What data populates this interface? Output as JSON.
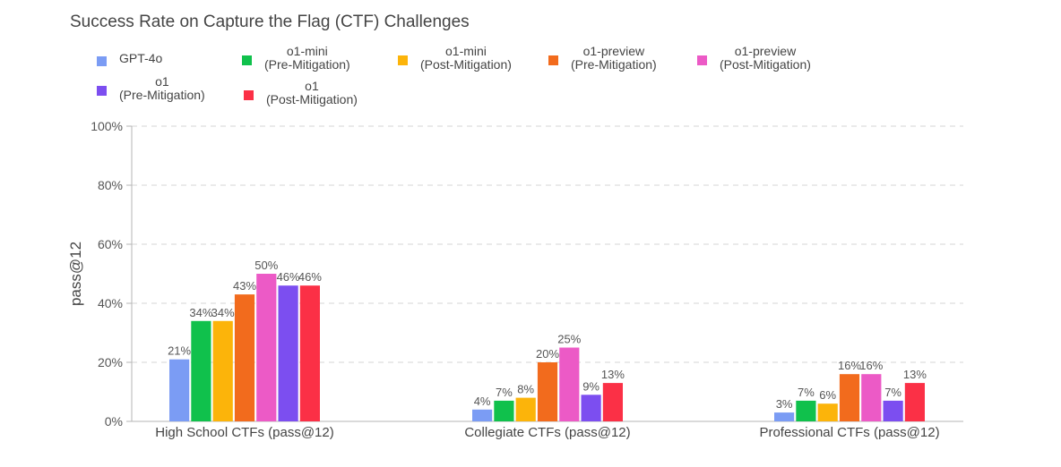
{
  "chart_data": {
    "type": "bar",
    "title": "Success Rate on Capture the Flag (CTF) Challenges",
    "xlabel": "",
    "ylabel": "pass@12",
    "ylim": [
      0,
      100
    ],
    "y_ticks": [
      "0%",
      "20%",
      "40%",
      "60%",
      "80%",
      "100%"
    ],
    "grid": true,
    "legend_position": "top",
    "categories": [
      "High School CTFs (pass@12)",
      "Collegiate CTFs (pass@12)",
      "Professional CTFs (pass@12)"
    ],
    "series": [
      {
        "name": "GPT-4o",
        "name_lines": [
          "GPT-4o"
        ],
        "color": "#7b9cf4",
        "values": [
          21,
          4,
          3
        ],
        "labels": [
          "21%",
          "4%",
          "3%"
        ]
      },
      {
        "name": "o1-mini (Pre-Mitigation)",
        "name_lines": [
          "o1-mini",
          "(Pre-Mitigation)"
        ],
        "color": "#10c14c",
        "values": [
          34,
          7,
          7
        ],
        "labels": [
          "34%",
          "7%",
          "7%"
        ]
      },
      {
        "name": "o1-mini (Post-Mitigation)",
        "name_lines": [
          "o1-mini",
          "(Post-Mitigation)"
        ],
        "color": "#fcb40a",
        "values": [
          34,
          8,
          6
        ],
        "labels": [
          "34%",
          "8%",
          "6%"
        ]
      },
      {
        "name": "o1-preview (Pre-Mitigation)",
        "name_lines": [
          "o1-preview",
          "(Pre-Mitigation)"
        ],
        "color": "#f26b1d",
        "values": [
          43,
          20,
          16
        ],
        "labels": [
          "43%",
          "20%",
          "16%"
        ]
      },
      {
        "name": "o1-preview (Post-Mitigation)",
        "name_lines": [
          "o1-preview",
          "(Post-Mitigation)"
        ],
        "color": "#ec5ac6",
        "values": [
          50,
          25,
          16
        ],
        "labels": [
          "50%",
          "25%",
          "16%"
        ]
      },
      {
        "name": "o1 (Pre-Mitigation)",
        "name_lines": [
          "o1",
          "(Pre-Mitigation)"
        ],
        "color": "#7c4ef0",
        "values": [
          46,
          9,
          7
        ],
        "labels": [
          "46%",
          "9%",
          "7%"
        ]
      },
      {
        "name": "o1 (Post-Mitigation)",
        "name_lines": [
          "o1",
          "(Post-Mitigation)"
        ],
        "color": "#fb3046",
        "values": [
          46,
          13,
          13
        ],
        "labels": [
          "46%",
          "13%",
          "13%"
        ]
      }
    ]
  }
}
